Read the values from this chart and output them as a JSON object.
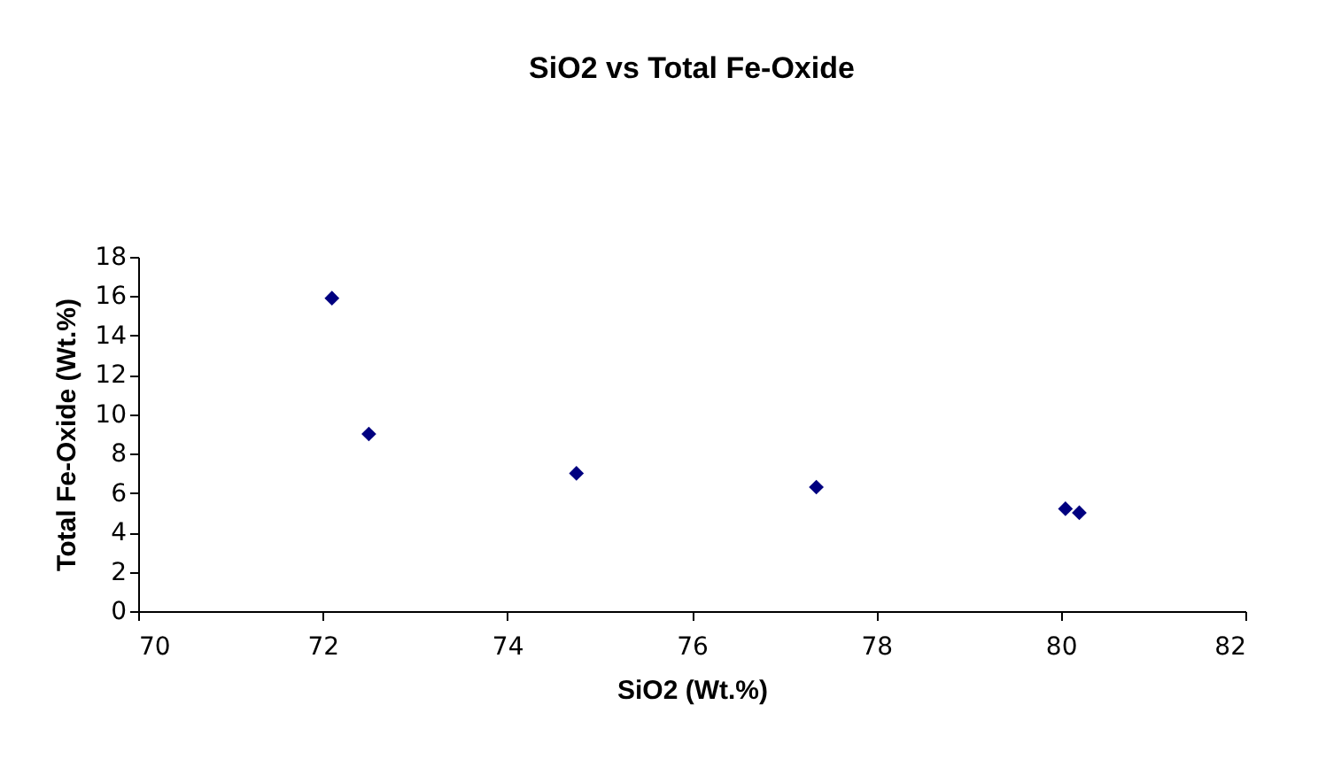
{
  "chart_data": {
    "type": "scatter",
    "title": "SiO2 vs Total Fe-Oxide",
    "xlabel": "SiO2 (Wt.%)",
    "ylabel": "Total Fe-Oxide (Wt.%)",
    "x": [
      72.1,
      72.5,
      74.75,
      77.35,
      80.05,
      80.2
    ],
    "series": [
      {
        "color": "#000080",
        "values": [
          15.9,
          9.0,
          7.0,
          6.3,
          5.2,
          5.0
        ]
      }
    ],
    "xlim": [
      70,
      82
    ],
    "xticks": [
      70,
      72,
      74,
      76,
      78,
      80,
      82
    ],
    "ylim": [
      0,
      18
    ],
    "yticks": [
      0,
      2,
      4,
      6,
      8,
      10,
      12,
      14,
      16,
      18
    ],
    "marker": "diamond",
    "grid": false
  }
}
